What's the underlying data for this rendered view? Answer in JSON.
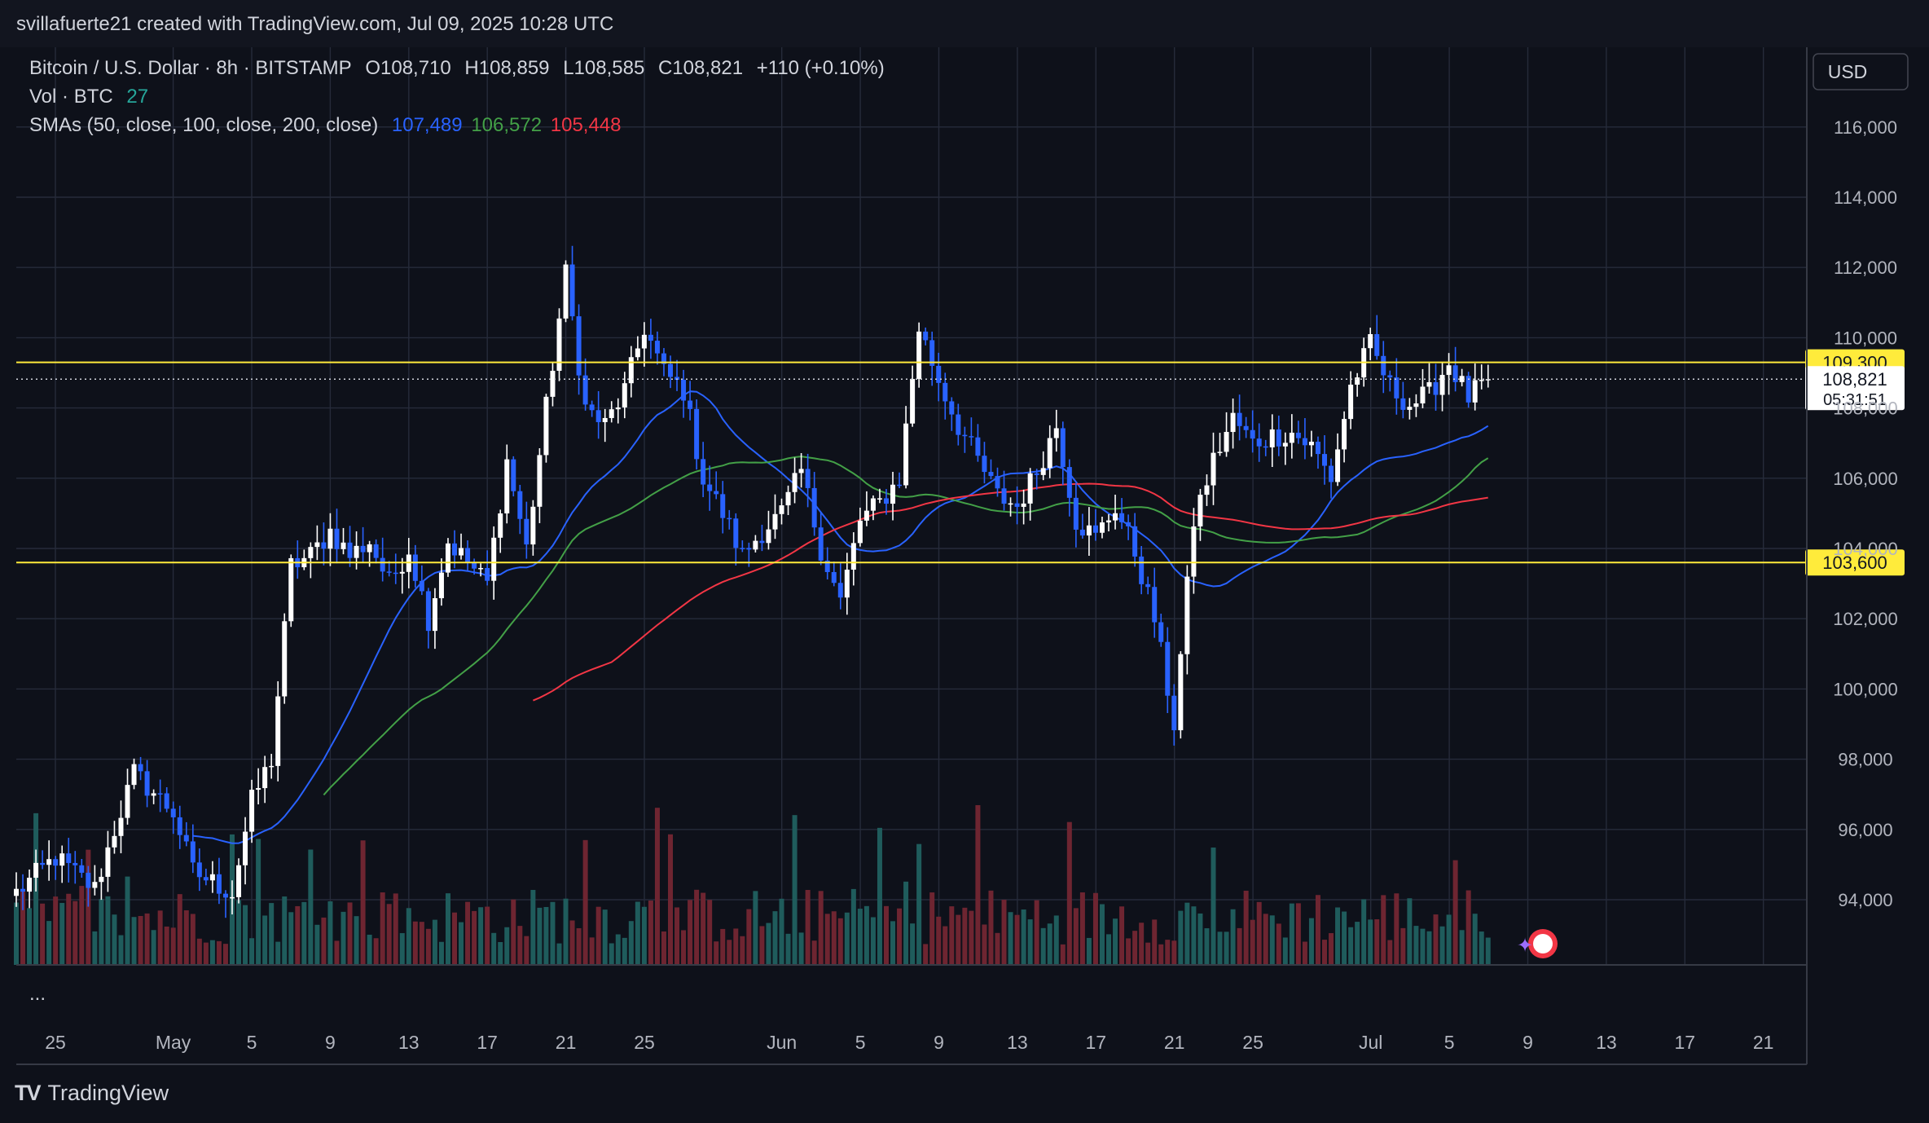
{
  "header": {
    "credit": "svillafuerte21 created with TradingView.com, Jul 09, 2025 10:28 UTC"
  },
  "legend": {
    "symbol": "Bitcoin / U.S. Dollar · 8h · BITSTAMP",
    "open": "O108,710",
    "high": "H108,859",
    "low": "L108,585",
    "close": "C108,821",
    "change": "+110 (+0.10%)",
    "vol_label": "Vol · BTC",
    "vol_value": "27",
    "sma_label": "SMAs (50, close, 100, close, 200, close)",
    "sma50": "107,489",
    "sma100": "106,572",
    "sma200": "105,448",
    "ellipsis": "..."
  },
  "currency_button": "USD",
  "footer_logo": "TradingView",
  "colors": {
    "background": "#0e111a",
    "grid": "#262b3a",
    "candle_up": "#ffffff",
    "candle_down": "#2962ff",
    "vol_up": "#1f5c5c",
    "vol_down": "#6e2531",
    "sma50": "#2962ff",
    "sma100": "#43a047",
    "sma200": "#f23645",
    "level": "#ffeb3b"
  },
  "chart_data": {
    "type": "candlestick",
    "timeframe": "8h",
    "y_ticks": [
      94000,
      96000,
      98000,
      100000,
      102000,
      104000,
      106000,
      108000,
      110000,
      112000,
      114000,
      116000
    ],
    "y_tick_labels": [
      "94,000",
      "96,000",
      "98,000",
      "100,000",
      "102,000",
      "104,000",
      "106,000",
      "108,000",
      "110,000",
      "112,000",
      "114,000",
      "116,000"
    ],
    "x_ticks": [
      {
        "day": 0,
        "label": "25"
      },
      {
        "day": 6,
        "label": "May"
      },
      {
        "day": 10,
        "label": "5"
      },
      {
        "day": 14,
        "label": "9"
      },
      {
        "day": 18,
        "label": "13"
      },
      {
        "day": 22,
        "label": "17"
      },
      {
        "day": 26,
        "label": "21"
      },
      {
        "day": 30,
        "label": "25"
      },
      {
        "day": 37,
        "label": "Jun"
      },
      {
        "day": 41,
        "label": "5"
      },
      {
        "day": 45,
        "label": "9"
      },
      {
        "day": 49,
        "label": "13"
      },
      {
        "day": 53,
        "label": "17"
      },
      {
        "day": 57,
        "label": "21"
      },
      {
        "day": 61,
        "label": "25"
      },
      {
        "day": 67,
        "label": "Jul"
      },
      {
        "day": 71,
        "label": "5"
      },
      {
        "day": 75,
        "label": "9"
      },
      {
        "day": 79,
        "label": "13"
      },
      {
        "day": 83,
        "label": "17"
      },
      {
        "day": 87,
        "label": "21"
      }
    ],
    "horizontal_levels": [
      {
        "price": 109300,
        "label": "109,300"
      },
      {
        "price": 103600,
        "label": "103,600"
      }
    ],
    "last_price": {
      "price": 108821,
      "label": "108,821",
      "countdown": "05:31:51"
    },
    "anchors": [
      [
        0,
        94200
      ],
      [
        2,
        95200
      ],
      [
        4,
        94300
      ],
      [
        5,
        96000
      ],
      [
        6,
        97600
      ],
      [
        8,
        96500
      ],
      [
        9,
        94800
      ],
      [
        10,
        94500
      ],
      [
        11,
        94200
      ],
      [
        12,
        96800
      ],
      [
        13,
        98000
      ],
      [
        14,
        103500
      ],
      [
        15,
        103800
      ],
      [
        16,
        104500
      ],
      [
        17,
        103800
      ],
      [
        18,
        104200
      ],
      [
        19,
        103000
      ],
      [
        20,
        104000
      ],
      [
        21,
        102000
      ],
      [
        22,
        104200
      ],
      [
        23,
        103600
      ],
      [
        24,
        103000
      ],
      [
        25,
        106500
      ],
      [
        26,
        104000
      ],
      [
        27,
        108000
      ],
      [
        28,
        111800
      ],
      [
        29,
        108000
      ],
      [
        30,
        107500
      ],
      [
        31,
        108500
      ],
      [
        32,
        110300
      ],
      [
        33,
        109000
      ],
      [
        34,
        108500
      ],
      [
        35,
        106000
      ],
      [
        36,
        105000
      ],
      [
        37,
        103800
      ],
      [
        38,
        104500
      ],
      [
        39,
        105000
      ],
      [
        40,
        106200
      ],
      [
        41,
        104000
      ],
      [
        42,
        102500
      ],
      [
        43,
        104800
      ],
      [
        44,
        105300
      ],
      [
        45,
        106000
      ],
      [
        46,
        110300
      ],
      [
        47,
        108800
      ],
      [
        48,
        107500
      ],
      [
        49,
        106500
      ],
      [
        50,
        105500
      ],
      [
        51,
        105200
      ],
      [
        52,
        106200
      ],
      [
        53,
        107500
      ],
      [
        54,
        104800
      ],
      [
        55,
        104300
      ],
      [
        56,
        105200
      ],
      [
        57,
        103900
      ],
      [
        58,
        102000
      ],
      [
        59,
        99000
      ],
      [
        60,
        104800
      ],
      [
        61,
        106500
      ],
      [
        62,
        107700
      ],
      [
        63,
        107000
      ],
      [
        64,
        107200
      ],
      [
        65,
        107300
      ],
      [
        66,
        106900
      ],
      [
        67,
        106000
      ],
      [
        68,
        108600
      ],
      [
        69,
        109800
      ],
      [
        70,
        108600
      ],
      [
        71,
        108100
      ],
      [
        72,
        108400
      ],
      [
        73,
        109300
      ],
      [
        74,
        108300
      ],
      [
        75,
        108821
      ]
    ],
    "sma": [
      {
        "name": "SMA 50",
        "period": 50,
        "last": 107489
      },
      {
        "name": "SMA 100",
        "period": 100,
        "last": 106572
      },
      {
        "name": "SMA 200",
        "period": 200,
        "last": 105448
      }
    ]
  }
}
